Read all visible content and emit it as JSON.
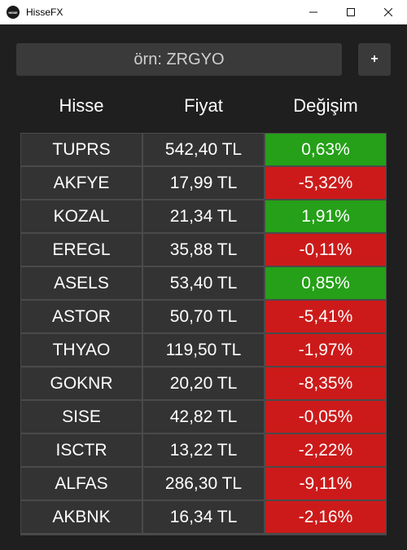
{
  "window": {
    "title": "HisseFX",
    "icon_text": "HISSE"
  },
  "search": {
    "placeholder": "örn: ZRGYO"
  },
  "add_button": {
    "label": "+"
  },
  "headers": {
    "stock": "Hisse",
    "price": "Fiyat",
    "change": "Değişim"
  },
  "colors": {
    "positive": "#25a018",
    "negative": "#cc1a1a",
    "cell": "#333333",
    "background": "#1f1f1f"
  },
  "rows": [
    {
      "stock": "TUPRS",
      "price": "542,40 TL",
      "change": "0,63%",
      "positive": true
    },
    {
      "stock": "AKFYE",
      "price": "17,99 TL",
      "change": "-5,32%",
      "positive": false
    },
    {
      "stock": "KOZAL",
      "price": "21,34 TL",
      "change": "1,91%",
      "positive": true
    },
    {
      "stock": "EREGL",
      "price": "35,88 TL",
      "change": "-0,11%",
      "positive": false
    },
    {
      "stock": "ASELS",
      "price": "53,40 TL",
      "change": "0,85%",
      "positive": true
    },
    {
      "stock": "ASTOR",
      "price": "50,70 TL",
      "change": "-5,41%",
      "positive": false
    },
    {
      "stock": "THYAO",
      "price": "119,50 TL",
      "change": "-1,97%",
      "positive": false
    },
    {
      "stock": "GOKNR",
      "price": "20,20 TL",
      "change": "-8,35%",
      "positive": false
    },
    {
      "stock": "SISE",
      "price": "42,82 TL",
      "change": "-0,05%",
      "positive": false
    },
    {
      "stock": "ISCTR",
      "price": "13,22 TL",
      "change": "-2,22%",
      "positive": false
    },
    {
      "stock": "ALFAS",
      "price": "286,30 TL",
      "change": "-9,11%",
      "positive": false
    },
    {
      "stock": "AKBNK",
      "price": "16,34 TL",
      "change": "-2,16%",
      "positive": false
    }
  ]
}
